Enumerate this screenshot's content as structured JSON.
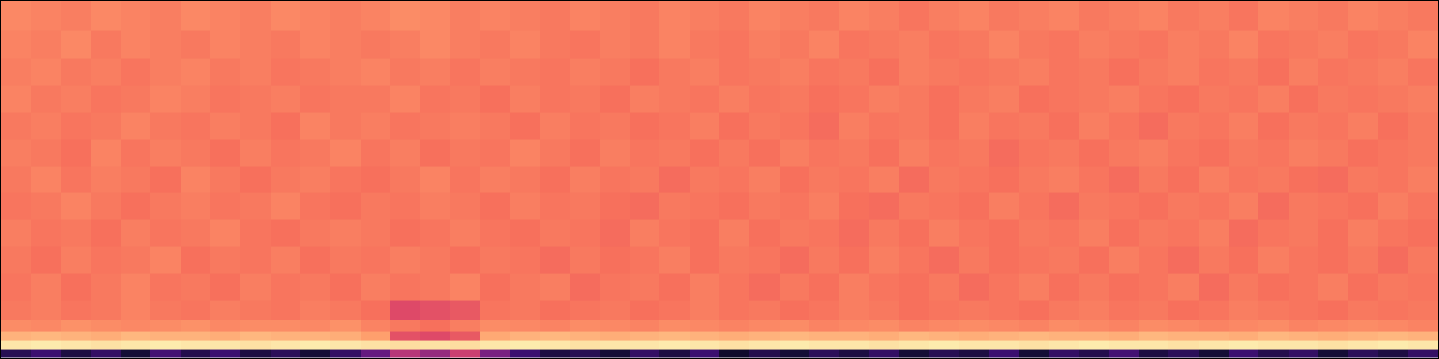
{
  "chart_data": {
    "type": "heatmap",
    "color": "magma",
    "tick_labels": false,
    "xlim": [
      -0.5,
      47.5
    ],
    "ylim": [
      0,
      40
    ],
    "zlim": [
      0,
      1
    ],
    "y": [
      0.5,
      1.5,
      2.5,
      3.5,
      5,
      8,
      11,
      14,
      17,
      20,
      23,
      26,
      29,
      32,
      35,
      38.5
    ],
    "cells": [
      [
        0.15,
        0.2,
        0.12,
        0.18,
        0.1,
        0.22,
        0.14,
        0.2,
        0.12,
        0.16,
        0.1,
        0.18,
        0.3,
        0.5,
        0.42,
        0.55,
        0.35,
        0.2,
        0.12,
        0.15,
        0.1,
        0.18,
        0.12,
        0.2,
        0.08,
        0.14,
        0.1,
        0.16,
        0.12,
        0.18,
        0.1,
        0.15,
        0.12,
        0.2,
        0.1,
        0.18,
        0.14,
        0.22,
        0.12,
        0.16,
        0.1,
        0.2,
        0.14,
        0.18,
        0.1,
        0.16,
        0.12,
        0.18
      ],
      [
        0.95,
        0.96,
        0.95,
        0.94,
        0.95,
        0.96,
        0.95,
        0.95,
        0.94,
        0.95,
        0.96,
        0.95,
        0.94,
        0.93,
        0.94,
        0.93,
        0.95,
        0.96,
        0.95,
        0.94,
        0.95,
        0.95,
        0.96,
        0.95,
        0.94,
        0.95,
        0.96,
        0.95,
        0.95,
        0.94,
        0.95,
        0.96,
        0.95,
        0.95,
        0.94,
        0.95,
        0.96,
        0.95,
        0.95,
        0.94,
        0.95,
        0.96,
        0.95,
        0.95,
        0.94,
        0.95,
        0.96,
        0.95
      ],
      [
        0.84,
        0.85,
        0.84,
        0.83,
        0.85,
        0.84,
        0.84,
        0.83,
        0.85,
        0.84,
        0.84,
        0.83,
        0.8,
        0.62,
        0.6,
        0.64,
        0.82,
        0.84,
        0.85,
        0.84,
        0.83,
        0.84,
        0.85,
        0.84,
        0.83,
        0.84,
        0.85,
        0.84,
        0.84,
        0.83,
        0.85,
        0.84,
        0.83,
        0.84,
        0.85,
        0.84,
        0.84,
        0.83,
        0.85,
        0.84,
        0.84,
        0.83,
        0.85,
        0.84,
        0.83,
        0.84,
        0.85,
        0.84
      ],
      [
        0.76,
        0.75,
        0.77,
        0.76,
        0.75,
        0.76,
        0.77,
        0.75,
        0.76,
        0.76,
        0.75,
        0.77,
        0.74,
        0.72,
        0.7,
        0.73,
        0.76,
        0.75,
        0.74,
        0.76,
        0.75,
        0.74,
        0.76,
        0.75,
        0.74,
        0.75,
        0.76,
        0.74,
        0.75,
        0.76,
        0.74,
        0.75,
        0.76,
        0.75,
        0.74,
        0.76,
        0.75,
        0.74,
        0.76,
        0.75,
        0.74,
        0.75,
        0.76,
        0.74,
        0.75,
        0.76,
        0.75,
        0.74
      ],
      [
        0.72,
        0.73,
        0.71,
        0.72,
        0.74,
        0.72,
        0.71,
        0.73,
        0.72,
        0.71,
        0.73,
        0.72,
        0.7,
        0.6,
        0.62,
        0.64,
        0.71,
        0.72,
        0.7,
        0.71,
        0.72,
        0.7,
        0.71,
        0.73,
        0.71,
        0.72,
        0.7,
        0.71,
        0.73,
        0.72,
        0.7,
        0.71,
        0.72,
        0.71,
        0.7,
        0.72,
        0.73,
        0.71,
        0.72,
        0.7,
        0.71,
        0.73,
        0.72,
        0.71,
        0.7,
        0.72,
        0.71,
        0.72
      ],
      [
        0.71,
        0.73,
        0.7,
        0.72,
        0.74,
        0.71,
        0.72,
        0.7,
        0.73,
        0.71,
        0.72,
        0.7,
        0.73,
        0.71,
        0.72,
        0.74,
        0.7,
        0.72,
        0.73,
        0.69,
        0.71,
        0.72,
        0.7,
        0.73,
        0.71,
        0.69,
        0.72,
        0.7,
        0.73,
        0.71,
        0.7,
        0.72,
        0.69,
        0.71,
        0.73,
        0.7,
        0.72,
        0.7,
        0.71,
        0.73,
        0.69,
        0.72,
        0.7,
        0.71,
        0.73,
        0.7,
        0.72,
        0.71
      ],
      [
        0.72,
        0.7,
        0.73,
        0.71,
        0.72,
        0.74,
        0.7,
        0.72,
        0.71,
        0.73,
        0.7,
        0.72,
        0.71,
        0.73,
        0.72,
        0.7,
        0.72,
        0.71,
        0.69,
        0.72,
        0.7,
        0.71,
        0.73,
        0.7,
        0.72,
        0.71,
        0.69,
        0.72,
        0.7,
        0.73,
        0.71,
        0.69,
        0.72,
        0.7,
        0.71,
        0.72,
        0.7,
        0.73,
        0.71,
        0.69,
        0.72,
        0.7,
        0.73,
        0.71,
        0.7,
        0.72,
        0.69,
        0.72
      ],
      [
        0.73,
        0.71,
        0.72,
        0.7,
        0.73,
        0.71,
        0.72,
        0.74,
        0.71,
        0.7,
        0.72,
        0.73,
        0.72,
        0.7,
        0.71,
        0.73,
        0.71,
        0.7,
        0.72,
        0.71,
        0.69,
        0.73,
        0.71,
        0.7,
        0.73,
        0.7,
        0.72,
        0.71,
        0.69,
        0.72,
        0.7,
        0.73,
        0.71,
        0.7,
        0.72,
        0.71,
        0.73,
        0.7,
        0.72,
        0.71,
        0.73,
        0.69,
        0.71,
        0.72,
        0.7,
        0.73,
        0.71,
        0.7
      ],
      [
        0.71,
        0.72,
        0.74,
        0.72,
        0.7,
        0.72,
        0.73,
        0.71,
        0.72,
        0.74,
        0.71,
        0.7,
        0.72,
        0.71,
        0.73,
        0.72,
        0.7,
        0.73,
        0.71,
        0.72,
        0.7,
        0.69,
        0.72,
        0.71,
        0.7,
        0.72,
        0.71,
        0.73,
        0.7,
        0.69,
        0.72,
        0.71,
        0.7,
        0.73,
        0.71,
        0.69,
        0.72,
        0.71,
        0.7,
        0.72,
        0.71,
        0.73,
        0.69,
        0.72,
        0.71,
        0.7,
        0.73,
        0.71
      ],
      [
        0.72,
        0.74,
        0.71,
        0.73,
        0.72,
        0.7,
        0.74,
        0.72,
        0.7,
        0.72,
        0.73,
        0.71,
        0.7,
        0.72,
        0.74,
        0.71,
        0.73,
        0.72,
        0.7,
        0.73,
        0.71,
        0.72,
        0.69,
        0.72,
        0.71,
        0.73,
        0.7,
        0.72,
        0.71,
        0.73,
        0.69,
        0.72,
        0.71,
        0.7,
        0.72,
        0.73,
        0.71,
        0.69,
        0.72,
        0.7,
        0.73,
        0.71,
        0.72,
        0.7,
        0.69,
        0.72,
        0.71,
        0.73
      ],
      [
        0.73,
        0.72,
        0.7,
        0.74,
        0.71,
        0.73,
        0.72,
        0.7,
        0.73,
        0.71,
        0.72,
        0.74,
        0.71,
        0.73,
        0.7,
        0.72,
        0.71,
        0.74,
        0.72,
        0.7,
        0.73,
        0.71,
        0.72,
        0.7,
        0.72,
        0.7,
        0.73,
        0.71,
        0.72,
        0.7,
        0.73,
        0.71,
        0.72,
        0.69,
        0.71,
        0.72,
        0.7,
        0.72,
        0.73,
        0.71,
        0.7,
        0.72,
        0.71,
        0.73,
        0.72,
        0.7,
        0.71,
        0.72
      ],
      [
        0.72,
        0.73,
        0.71,
        0.72,
        0.74,
        0.72,
        0.71,
        0.73,
        0.72,
        0.7,
        0.74,
        0.72,
        0.73,
        0.71,
        0.72,
        0.73,
        0.72,
        0.7,
        0.73,
        0.71,
        0.72,
        0.7,
        0.71,
        0.73,
        0.7,
        0.72,
        0.71,
        0.69,
        0.73,
        0.71,
        0.72,
        0.7,
        0.73,
        0.71,
        0.72,
        0.7,
        0.73,
        0.71,
        0.69,
        0.72,
        0.71,
        0.73,
        0.7,
        0.72,
        0.71,
        0.73,
        0.7,
        0.72
      ],
      [
        0.74,
        0.72,
        0.73,
        0.71,
        0.72,
        0.74,
        0.73,
        0.71,
        0.72,
        0.73,
        0.71,
        0.72,
        0.72,
        0.74,
        0.71,
        0.72,
        0.7,
        0.73,
        0.71,
        0.72,
        0.7,
        0.73,
        0.72,
        0.71,
        0.73,
        0.71,
        0.72,
        0.7,
        0.71,
        0.73,
        0.72,
        0.7,
        0.72,
        0.73,
        0.7,
        0.71,
        0.72,
        0.73,
        0.71,
        0.7,
        0.72,
        0.71,
        0.73,
        0.7,
        0.72,
        0.71,
        0.72,
        0.73
      ],
      [
        0.73,
        0.74,
        0.72,
        0.73,
        0.71,
        0.73,
        0.74,
        0.72,
        0.73,
        0.71,
        0.72,
        0.73,
        0.74,
        0.72,
        0.73,
        0.71,
        0.73,
        0.72,
        0.71,
        0.73,
        0.72,
        0.7,
        0.72,
        0.73,
        0.71,
        0.72,
        0.73,
        0.71,
        0.72,
        0.7,
        0.73,
        0.72,
        0.71,
        0.72,
        0.73,
        0.71,
        0.72,
        0.7,
        0.72,
        0.73,
        0.71,
        0.72,
        0.7,
        0.73,
        0.71,
        0.72,
        0.73,
        0.71
      ],
      [
        0.74,
        0.73,
        0.75,
        0.72,
        0.74,
        0.73,
        0.72,
        0.74,
        0.73,
        0.72,
        0.74,
        0.73,
        0.72,
        0.73,
        0.75,
        0.73,
        0.72,
        0.74,
        0.72,
        0.71,
        0.73,
        0.72,
        0.74,
        0.72,
        0.71,
        0.73,
        0.72,
        0.74,
        0.71,
        0.72,
        0.73,
        0.71,
        0.72,
        0.74,
        0.72,
        0.71,
        0.73,
        0.72,
        0.71,
        0.73,
        0.72,
        0.74,
        0.71,
        0.72,
        0.73,
        0.71,
        0.72,
        0.74
      ],
      [
        0.75,
        0.74,
        0.73,
        0.75,
        0.74,
        0.73,
        0.75,
        0.74,
        0.73,
        0.75,
        0.74,
        0.73,
        0.74,
        0.76,
        0.75,
        0.73,
        0.74,
        0.73,
        0.72,
        0.74,
        0.73,
        0.72,
        0.74,
        0.73,
        0.72,
        0.74,
        0.73,
        0.72,
        0.74,
        0.73,
        0.71,
        0.73,
        0.74,
        0.72,
        0.73,
        0.74,
        0.72,
        0.73,
        0.74,
        0.72,
        0.73,
        0.71,
        0.74,
        0.73,
        0.72,
        0.74,
        0.73,
        0.72
      ]
    ]
  }
}
